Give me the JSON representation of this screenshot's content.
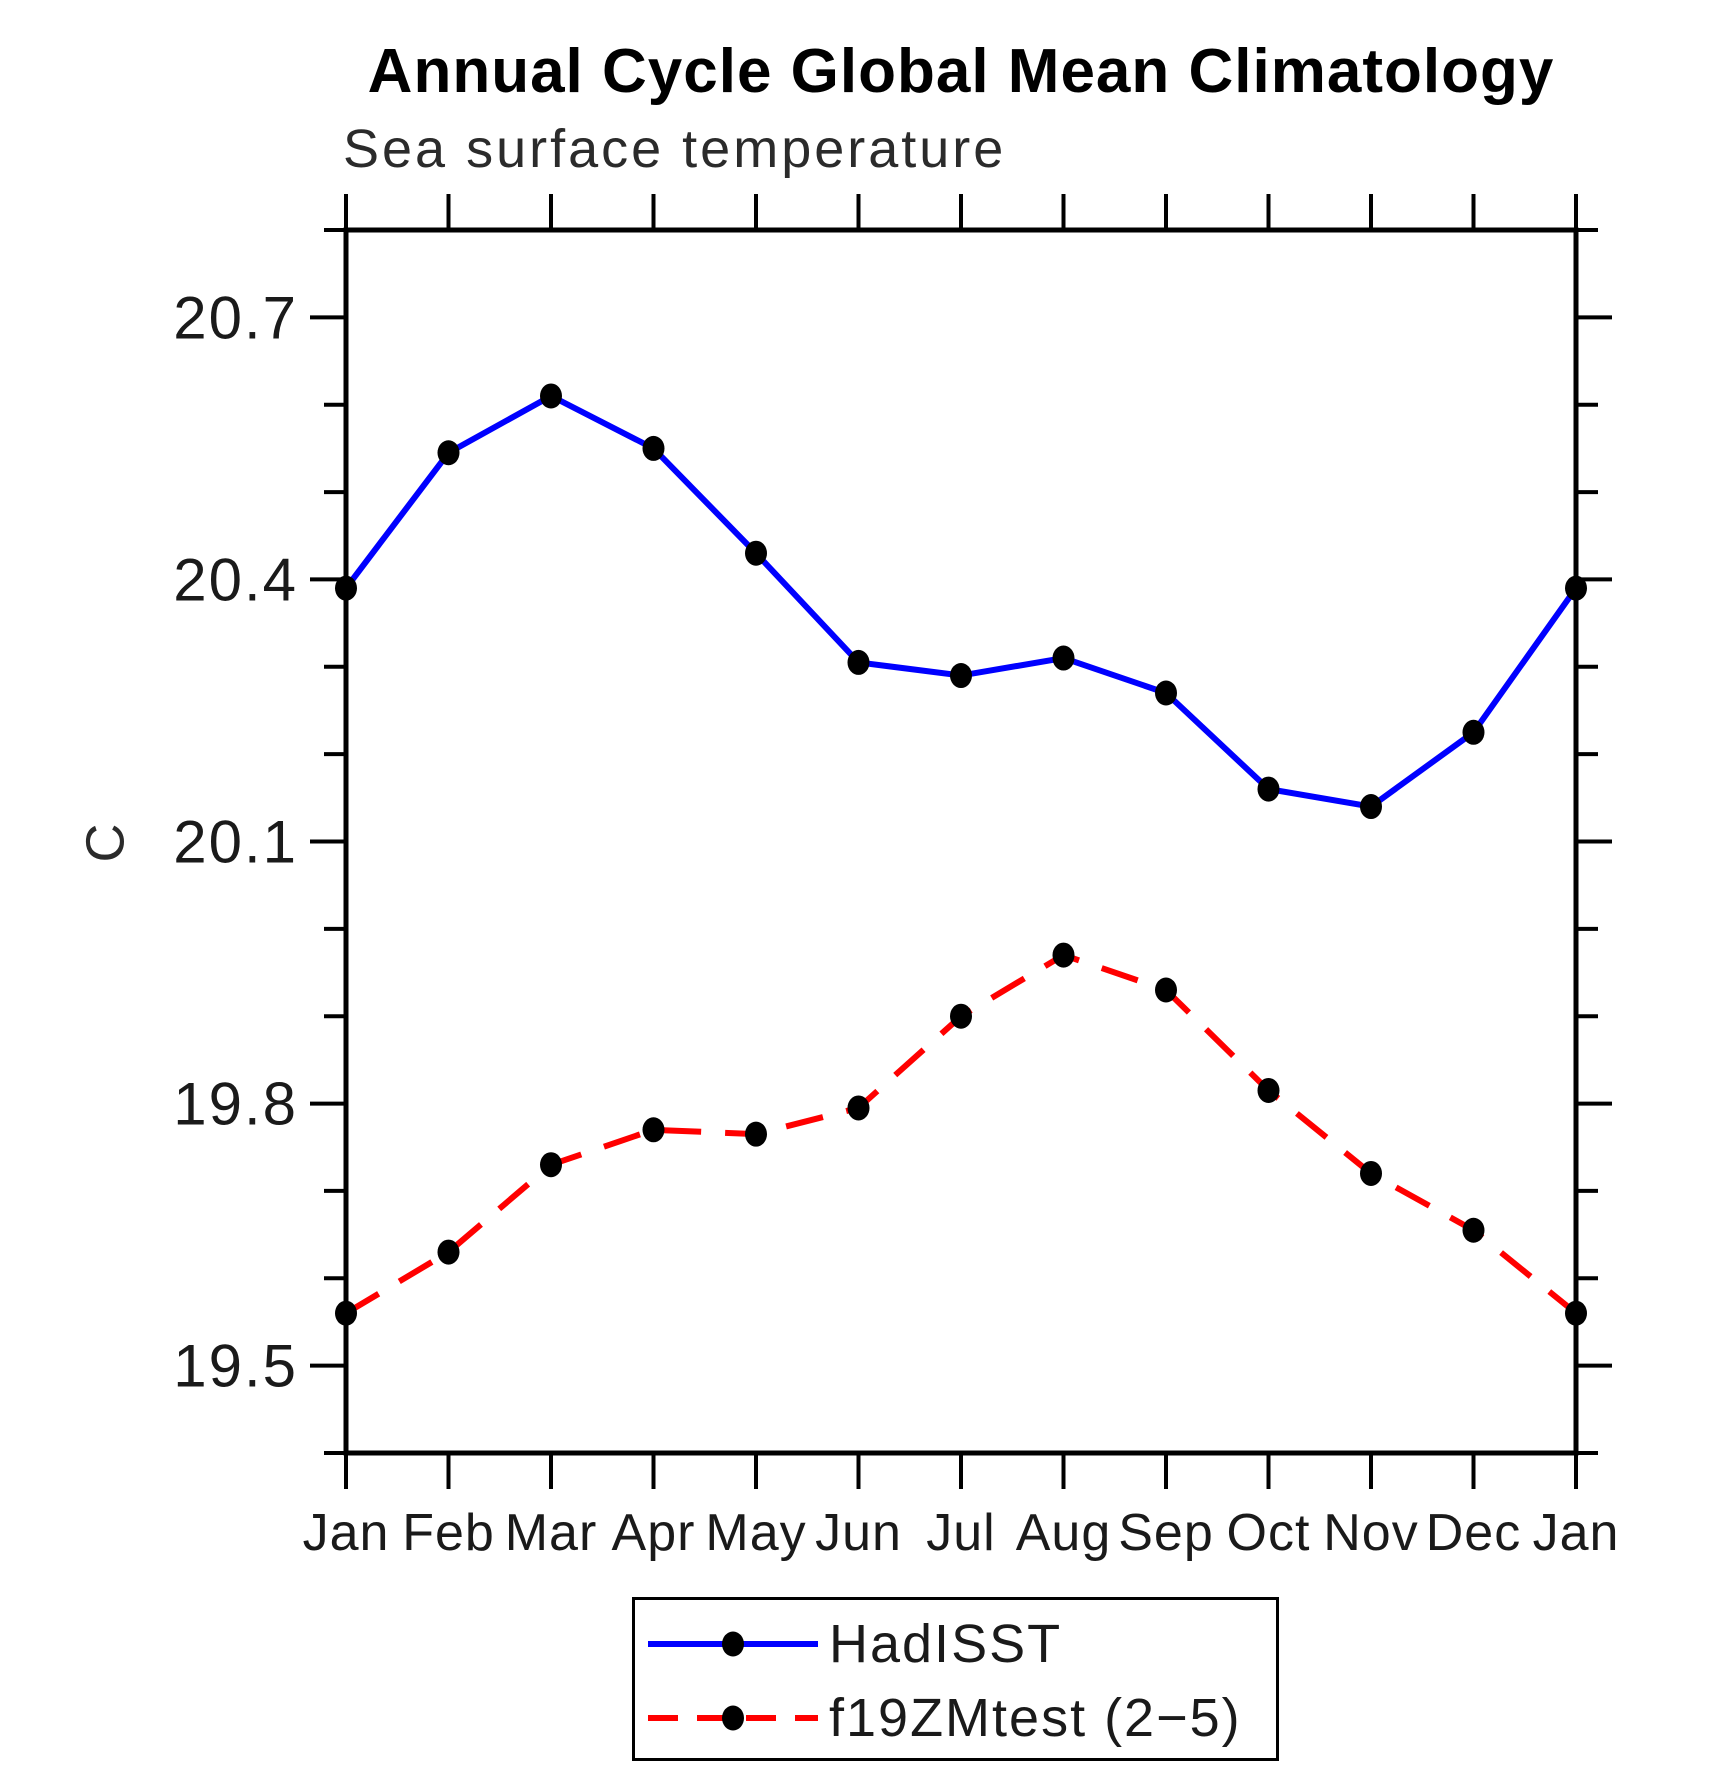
{
  "chart_data": {
    "type": "line",
    "title": "Annual Cycle Global Mean Climatology",
    "subtitle": "Sea surface temperature",
    "ylabel": "C",
    "categories": [
      "Jan",
      "Feb",
      "Mar",
      "Apr",
      "May",
      "Jun",
      "Jul",
      "Aug",
      "Sep",
      "Oct",
      "Nov",
      "Dec",
      "Jan"
    ],
    "yticks": [
      20.7,
      20.4,
      20.1,
      19.8,
      19.5
    ],
    "ylim": [
      19.4,
      20.8
    ],
    "minor_tick_step": 0.1,
    "grid": false,
    "legend_position": "bottom-center",
    "series": [
      {
        "name": "HadISST",
        "color": "#0000FF",
        "line_style": "solid",
        "marker": "filled-circle",
        "marker_color": "#000000",
        "values": [
          20.39,
          20.545,
          20.61,
          20.55,
          20.43,
          20.305,
          20.29,
          20.31,
          20.27,
          20.16,
          20.14,
          20.225,
          20.39
        ]
      },
      {
        "name": "f19ZMtest (2−5)",
        "color": "#FF0000",
        "line_style": "dashed",
        "marker": "filled-circle",
        "marker_color": "#000000",
        "values": [
          19.56,
          19.63,
          19.73,
          19.77,
          19.765,
          19.795,
          19.9,
          19.97,
          19.93,
          19.815,
          19.72,
          19.655,
          19.56
        ]
      }
    ]
  }
}
